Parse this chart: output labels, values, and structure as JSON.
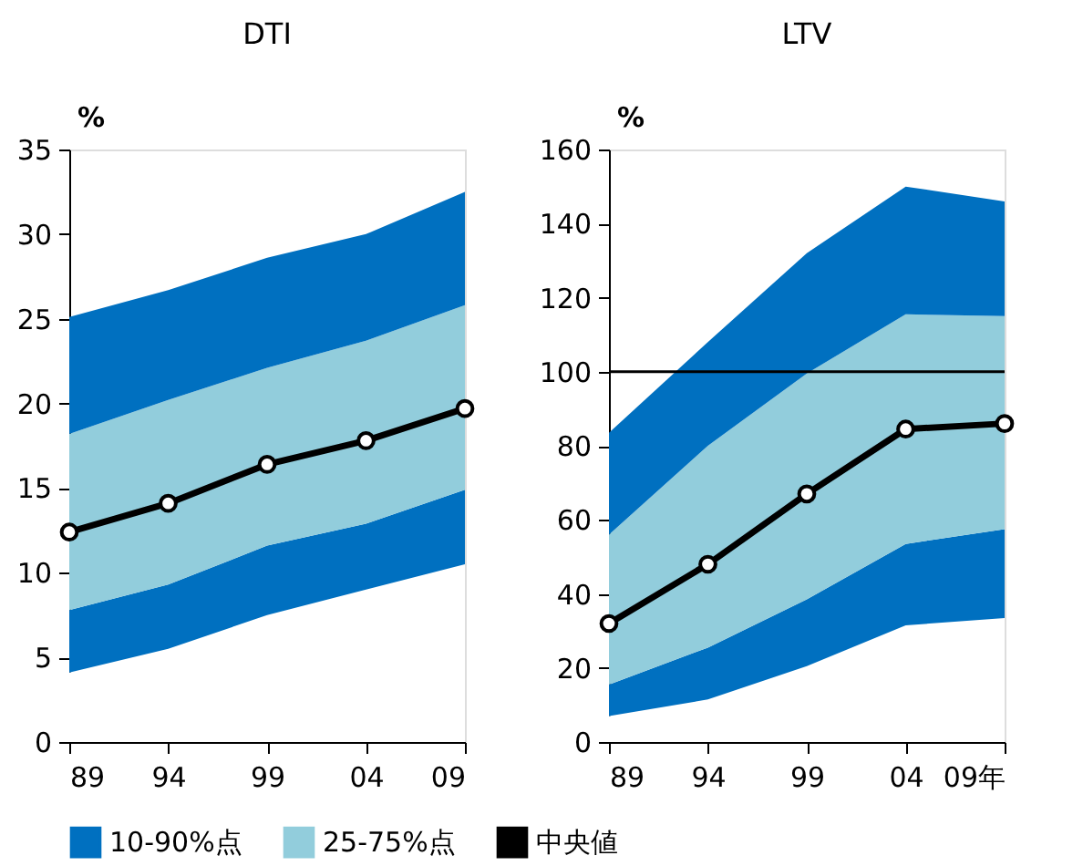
{
  "chart_data": [
    {
      "type": "area",
      "stacked": true,
      "title": "DTI",
      "ylabel": "%",
      "categories": [
        "89",
        "94",
        "99",
        "04",
        "09"
      ],
      "ylim": [
        0,
        35
      ],
      "yticks": [
        0,
        5,
        10,
        15,
        20,
        25,
        30,
        35
      ],
      "grid": false,
      "legend": "bottom",
      "line_style": "solid",
      "series": [
        {
          "color": "#ffffff",
          "values": [
            4.1,
            5.5,
            7.5,
            9.0,
            10.5
          ]
        },
        {
          "name": "10-90%点",
          "color": "#0070c0",
          "values": [
            3.7,
            3.8,
            4.1,
            3.9,
            4.4
          ]
        },
        {
          "name": "25-75%点",
          "color": "#92cddc",
          "values": [
            10.4,
            10.9,
            10.5,
            10.8,
            10.9
          ]
        },
        {
          "color": "#0070c0",
          "values": [
            6.9,
            6.5,
            6.5,
            6.3,
            6.7
          ]
        },
        {
          "name": "中央値",
          "type": "line",
          "marker": "circle",
          "color": "#000000",
          "values": [
            12.4,
            14.1,
            16.4,
            17.8,
            19.7
          ]
        }
      ]
    },
    {
      "type": "area",
      "stacked": true,
      "title": "LTV",
      "ylabel": "%",
      "categories": [
        "89",
        "94",
        "99",
        "04",
        "09年"
      ],
      "ylim": [
        0,
        160
      ],
      "yticks": [
        0,
        20,
        40,
        60,
        80,
        100,
        120,
        140,
        160
      ],
      "grid": false,
      "legend": "bottom",
      "line_style": "solid",
      "ref_lines": [
        {
          "axis": "y",
          "value": 100,
          "color": "#000000"
        }
      ],
      "series": [
        {
          "color": "#ffffff",
          "values": [
            7,
            11.5,
            20.5,
            31.5,
            33.5
          ]
        },
        {
          "name": "10-90%点",
          "color": "#0070c0",
          "values": [
            8.5,
            14,
            18,
            22,
            24
          ]
        },
        {
          "name": "25-75%点",
          "color": "#92cddc",
          "values": [
            40.5,
            54.5,
            61,
            62,
            57.5
          ]
        },
        {
          "color": "#0070c0",
          "values": [
            27.5,
            28,
            32.5,
            34.5,
            31
          ]
        },
        {
          "name": "中央値",
          "type": "line",
          "marker": "circle",
          "color": "#000000",
          "values": [
            32,
            48,
            67,
            84.5,
            86
          ]
        }
      ]
    }
  ]
}
